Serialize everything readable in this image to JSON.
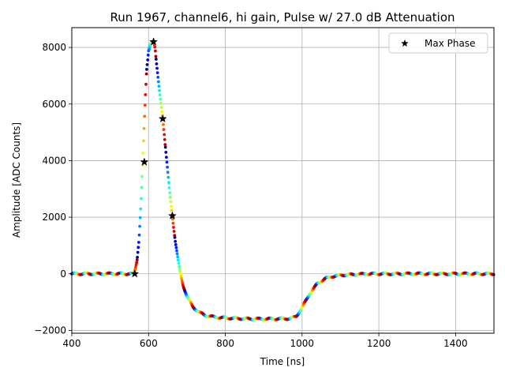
{
  "chart_data": {
    "type": "scatter",
    "title": "Run 1967, channel6, hi gain, Pulse w/ 27.0 dB Attenuation",
    "xlabel": "Time [ns]",
    "ylabel": "Amplitude [ADC Counts]",
    "xlim": [
      400,
      1500
    ],
    "ylim": [
      -2100,
      8700
    ],
    "xticks": [
      400,
      600,
      800,
      1000,
      1200,
      1400
    ],
    "yticks": [
      -2000,
      0,
      2000,
      4000,
      6000,
      8000
    ],
    "grid": true,
    "legend": {
      "position": "top-right",
      "entries": [
        "Max Phase"
      ]
    },
    "colormap": "jet",
    "series": [
      {
        "name": "Max Phase",
        "marker": "star",
        "color": "#000000",
        "x": [
          564,
          589,
          613,
          637,
          662
        ],
        "y": [
          0,
          3950,
          8200,
          5480,
          2050
        ]
      }
    ],
    "pulse_curve": {
      "x": [
        400,
        450,
        500,
        540,
        555,
        562,
        565,
        570,
        575,
        580,
        585,
        590,
        595,
        600,
        605,
        610,
        613,
        617,
        620,
        625,
        630,
        637,
        645,
        655,
        662,
        670,
        680,
        690,
        700,
        715,
        730,
        750,
        775,
        800,
        830,
        860,
        900,
        940,
        970,
        985,
        1000,
        1020,
        1040,
        1060,
        1080,
        1100,
        1140,
        1200,
        1300,
        1400,
        1500
      ],
      "y": [
        0,
        0,
        0,
        0,
        0,
        30,
        150,
        500,
        1200,
        2400,
        3950,
        5700,
        7200,
        7900,
        8150,
        8200,
        8200,
        7950,
        7500,
        6900,
        6300,
        5480,
        4300,
        2900,
        2050,
        1100,
        200,
        -400,
        -800,
        -1150,
        -1350,
        -1480,
        -1540,
        -1560,
        -1575,
        -1590,
        -1600,
        -1590,
        -1580,
        -1500,
        -1200,
        -700,
        -350,
        -170,
        -90,
        -50,
        -20,
        0,
        0,
        0,
        0
      ]
    }
  }
}
